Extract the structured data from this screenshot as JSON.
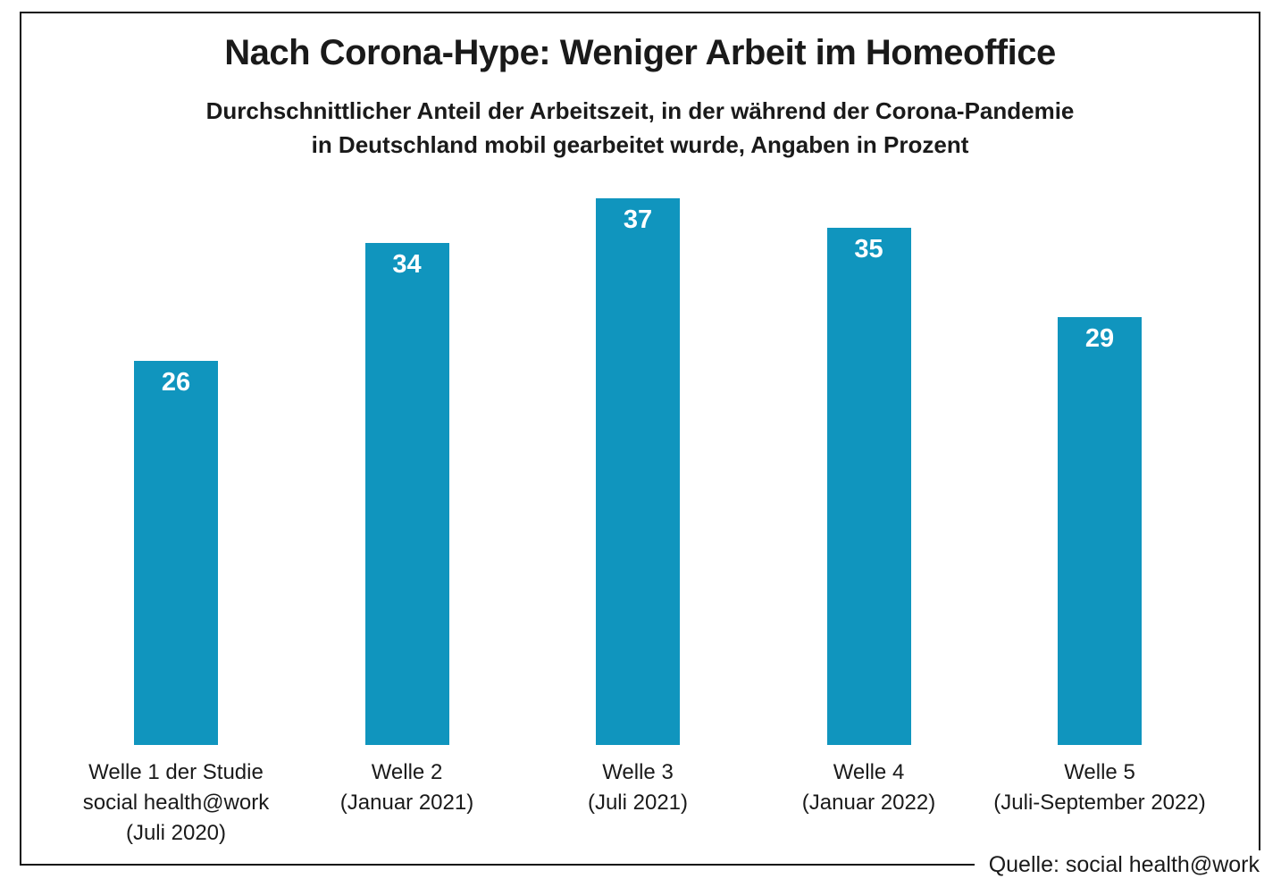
{
  "chart_data": {
    "type": "bar",
    "title": "Nach Corona-Hype: Weniger Arbeit im Homeoffice",
    "subtitle_lines": [
      "Durchschnittlicher Anteil der Arbeitszeit, in der während der Corona-Pandemie",
      "in Deutschland mobil gearbeitet wurde, Angaben in Prozent"
    ],
    "categories": [
      [
        "Welle 1 der Studie",
        "social health@work",
        "(Juli 2020)"
      ],
      [
        "Welle 2",
        "(Januar 2021)"
      ],
      [
        "Welle 3",
        "(Juli 2021)"
      ],
      [
        "Welle 4",
        "(Januar 2022)"
      ],
      [
        "Welle 5",
        "(Juli-September 2022)"
      ]
    ],
    "values": [
      26,
      34,
      37,
      35,
      29
    ],
    "unit": "Prozent",
    "ylim": [
      0,
      40
    ],
    "grid": false,
    "legend": false,
    "value_labels_inside_bars": true,
    "bar_color": "#1095be",
    "value_label_color": "#ffffff",
    "source": "Quelle: social health@work"
  }
}
